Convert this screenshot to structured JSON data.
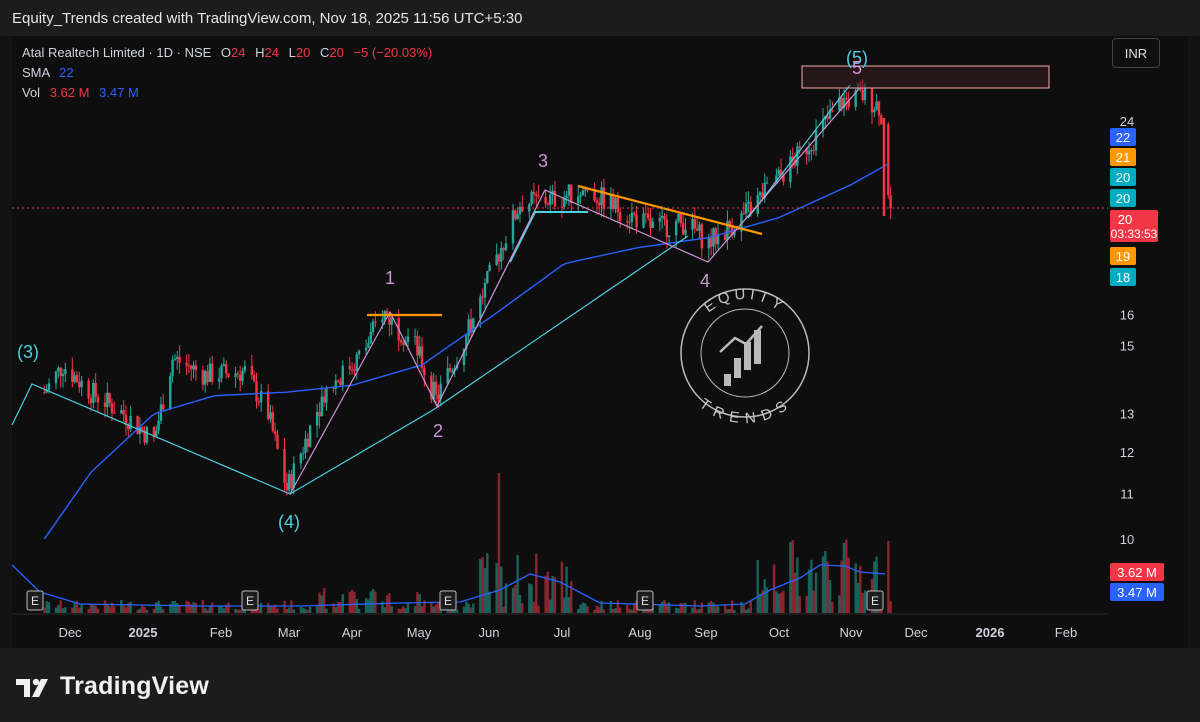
{
  "header": {
    "text": "Equity_Trends created with TradingView.com, Nov 18, 2025 11:56 UTC+5:30"
  },
  "legend": {
    "symbol": "Atal Realtech Limited · 1D · NSE",
    "o_label": "O",
    "o_value": "24",
    "h_label": "H",
    "h_value": "24",
    "l_label": "L",
    "l_value": "20",
    "c_label": "C",
    "c_value": "20",
    "change": "−5 (−20.03%)",
    "sma_label": "SMA",
    "sma_value": "22",
    "vol_label": "Vol",
    "vol_value1": "3.62 M",
    "vol_value2": "3.47 M"
  },
  "currency": "INR",
  "footer": {
    "brand": "TradingView"
  },
  "watermark": {
    "top": "EQUITY",
    "bottom": "TRENDS"
  },
  "colors": {
    "up": "#26a69a",
    "down": "#f23645",
    "sma": "#2962ff",
    "orange": "#ff9800",
    "cyan": "#4dd0e1",
    "wave": "#ce93d8"
  },
  "chart_data": {
    "type": "candlestick",
    "x": [
      "Dec",
      "2025",
      "Feb",
      "Mar",
      "Apr",
      "May",
      "Jun",
      "Jul",
      "Aug",
      "Sep",
      "Oct",
      "Nov",
      "Dec",
      "2026",
      "Feb"
    ],
    "y_ticks": [
      24,
      16,
      15,
      13,
      12,
      11,
      10
    ],
    "price_labels": [
      {
        "text": "22",
        "color": "#2962ff"
      },
      {
        "text": "21",
        "color": "#ff9800"
      },
      {
        "text": "20",
        "color": "#00acc1"
      },
      {
        "text": "20",
        "color": "#00acc1"
      },
      {
        "text": "20",
        "color": "#f23645",
        "sub": "03:33:53"
      },
      {
        "text": "19",
        "color": "#ff9800"
      },
      {
        "text": "18",
        "color": "#00acc1"
      }
    ],
    "volume_labels": [
      {
        "text": "3.62 M",
        "color": "#f23645"
      },
      {
        "text": "3.47 M",
        "color": "#2962ff"
      }
    ],
    "wave_labels": [
      "(3)",
      "(4)",
      "1",
      "2",
      "3",
      "4",
      "(5)",
      "5"
    ],
    "earnings_marker": "E",
    "price_points": [
      {
        "d": "Nov 20",
        "p": 13.6
      },
      {
        "d": "Nov 28",
        "p": 14.4
      },
      {
        "d": "Dec 10",
        "p": 13.6
      },
      {
        "d": "Dec 24",
        "p": 13.0
      },
      {
        "d": "Jan 06",
        "p": 12.3
      },
      {
        "d": "Jan 14",
        "p": 14.6
      },
      {
        "d": "Jan 28",
        "p": 14.1
      },
      {
        "d": "Feb 14",
        "p": 14.2
      },
      {
        "d": "Feb 24",
        "p": 13.0
      },
      {
        "d": "Mar 04",
        "p": 11.1
      },
      {
        "d": "Mar 20",
        "p": 13.6
      },
      {
        "d": "Apr 06",
        "p": 14.8
      },
      {
        "d": "Apr 14",
        "p": 16.1
      },
      {
        "d": "Apr 28",
        "p": 15.0
      },
      {
        "d": "May 07",
        "p": 13.4
      },
      {
        "d": "May 20",
        "p": 15.3
      },
      {
        "d": "Jun 02",
        "p": 18.0
      },
      {
        "d": "Jun 12",
        "p": 20.2
      },
      {
        "d": "Jun 28",
        "p": 20.4
      },
      {
        "d": "Jul 10",
        "p": 20.8
      },
      {
        "d": "Jul 24",
        "p": 20.0
      },
      {
        "d": "Aug 08",
        "p": 19.2
      },
      {
        "d": "Aug 22",
        "p": 19.4
      },
      {
        "d": "Sep 01",
        "p": 18.6
      },
      {
        "d": "Sep 15",
        "p": 19.6
      },
      {
        "d": "Oct 01",
        "p": 21.3
      },
      {
        "d": "Oct 15",
        "p": 23.0
      },
      {
        "d": "Oct 28",
        "p": 25.0
      },
      {
        "d": "Nov 06",
        "p": 25.3
      },
      {
        "d": "Nov 13",
        "p": 24.8
      },
      {
        "d": "Nov 18",
        "p": 20.0
      }
    ],
    "sma": [
      {
        "d": "Nov 20",
        "p": 10.0
      },
      {
        "d": "Dec 10",
        "p": 11.5
      },
      {
        "d": "Jan 06",
        "p": 13.0
      },
      {
        "d": "Feb 01",
        "p": 13.5
      },
      {
        "d": "Mar 04",
        "p": 13.6
      },
      {
        "d": "Apr 01",
        "p": 13.8
      },
      {
        "d": "May 01",
        "p": 14.4
      },
      {
        "d": "Jun 01",
        "p": 16.0
      },
      {
        "d": "Jul 01",
        "p": 17.8
      },
      {
        "d": "Aug 01",
        "p": 18.4
      },
      {
        "d": "Sep 01",
        "p": 18.8
      },
      {
        "d": "Oct 01",
        "p": 19.6
      },
      {
        "d": "Nov 01",
        "p": 21.0
      },
      {
        "d": "Nov 18",
        "p": 22.0
      }
    ]
  }
}
